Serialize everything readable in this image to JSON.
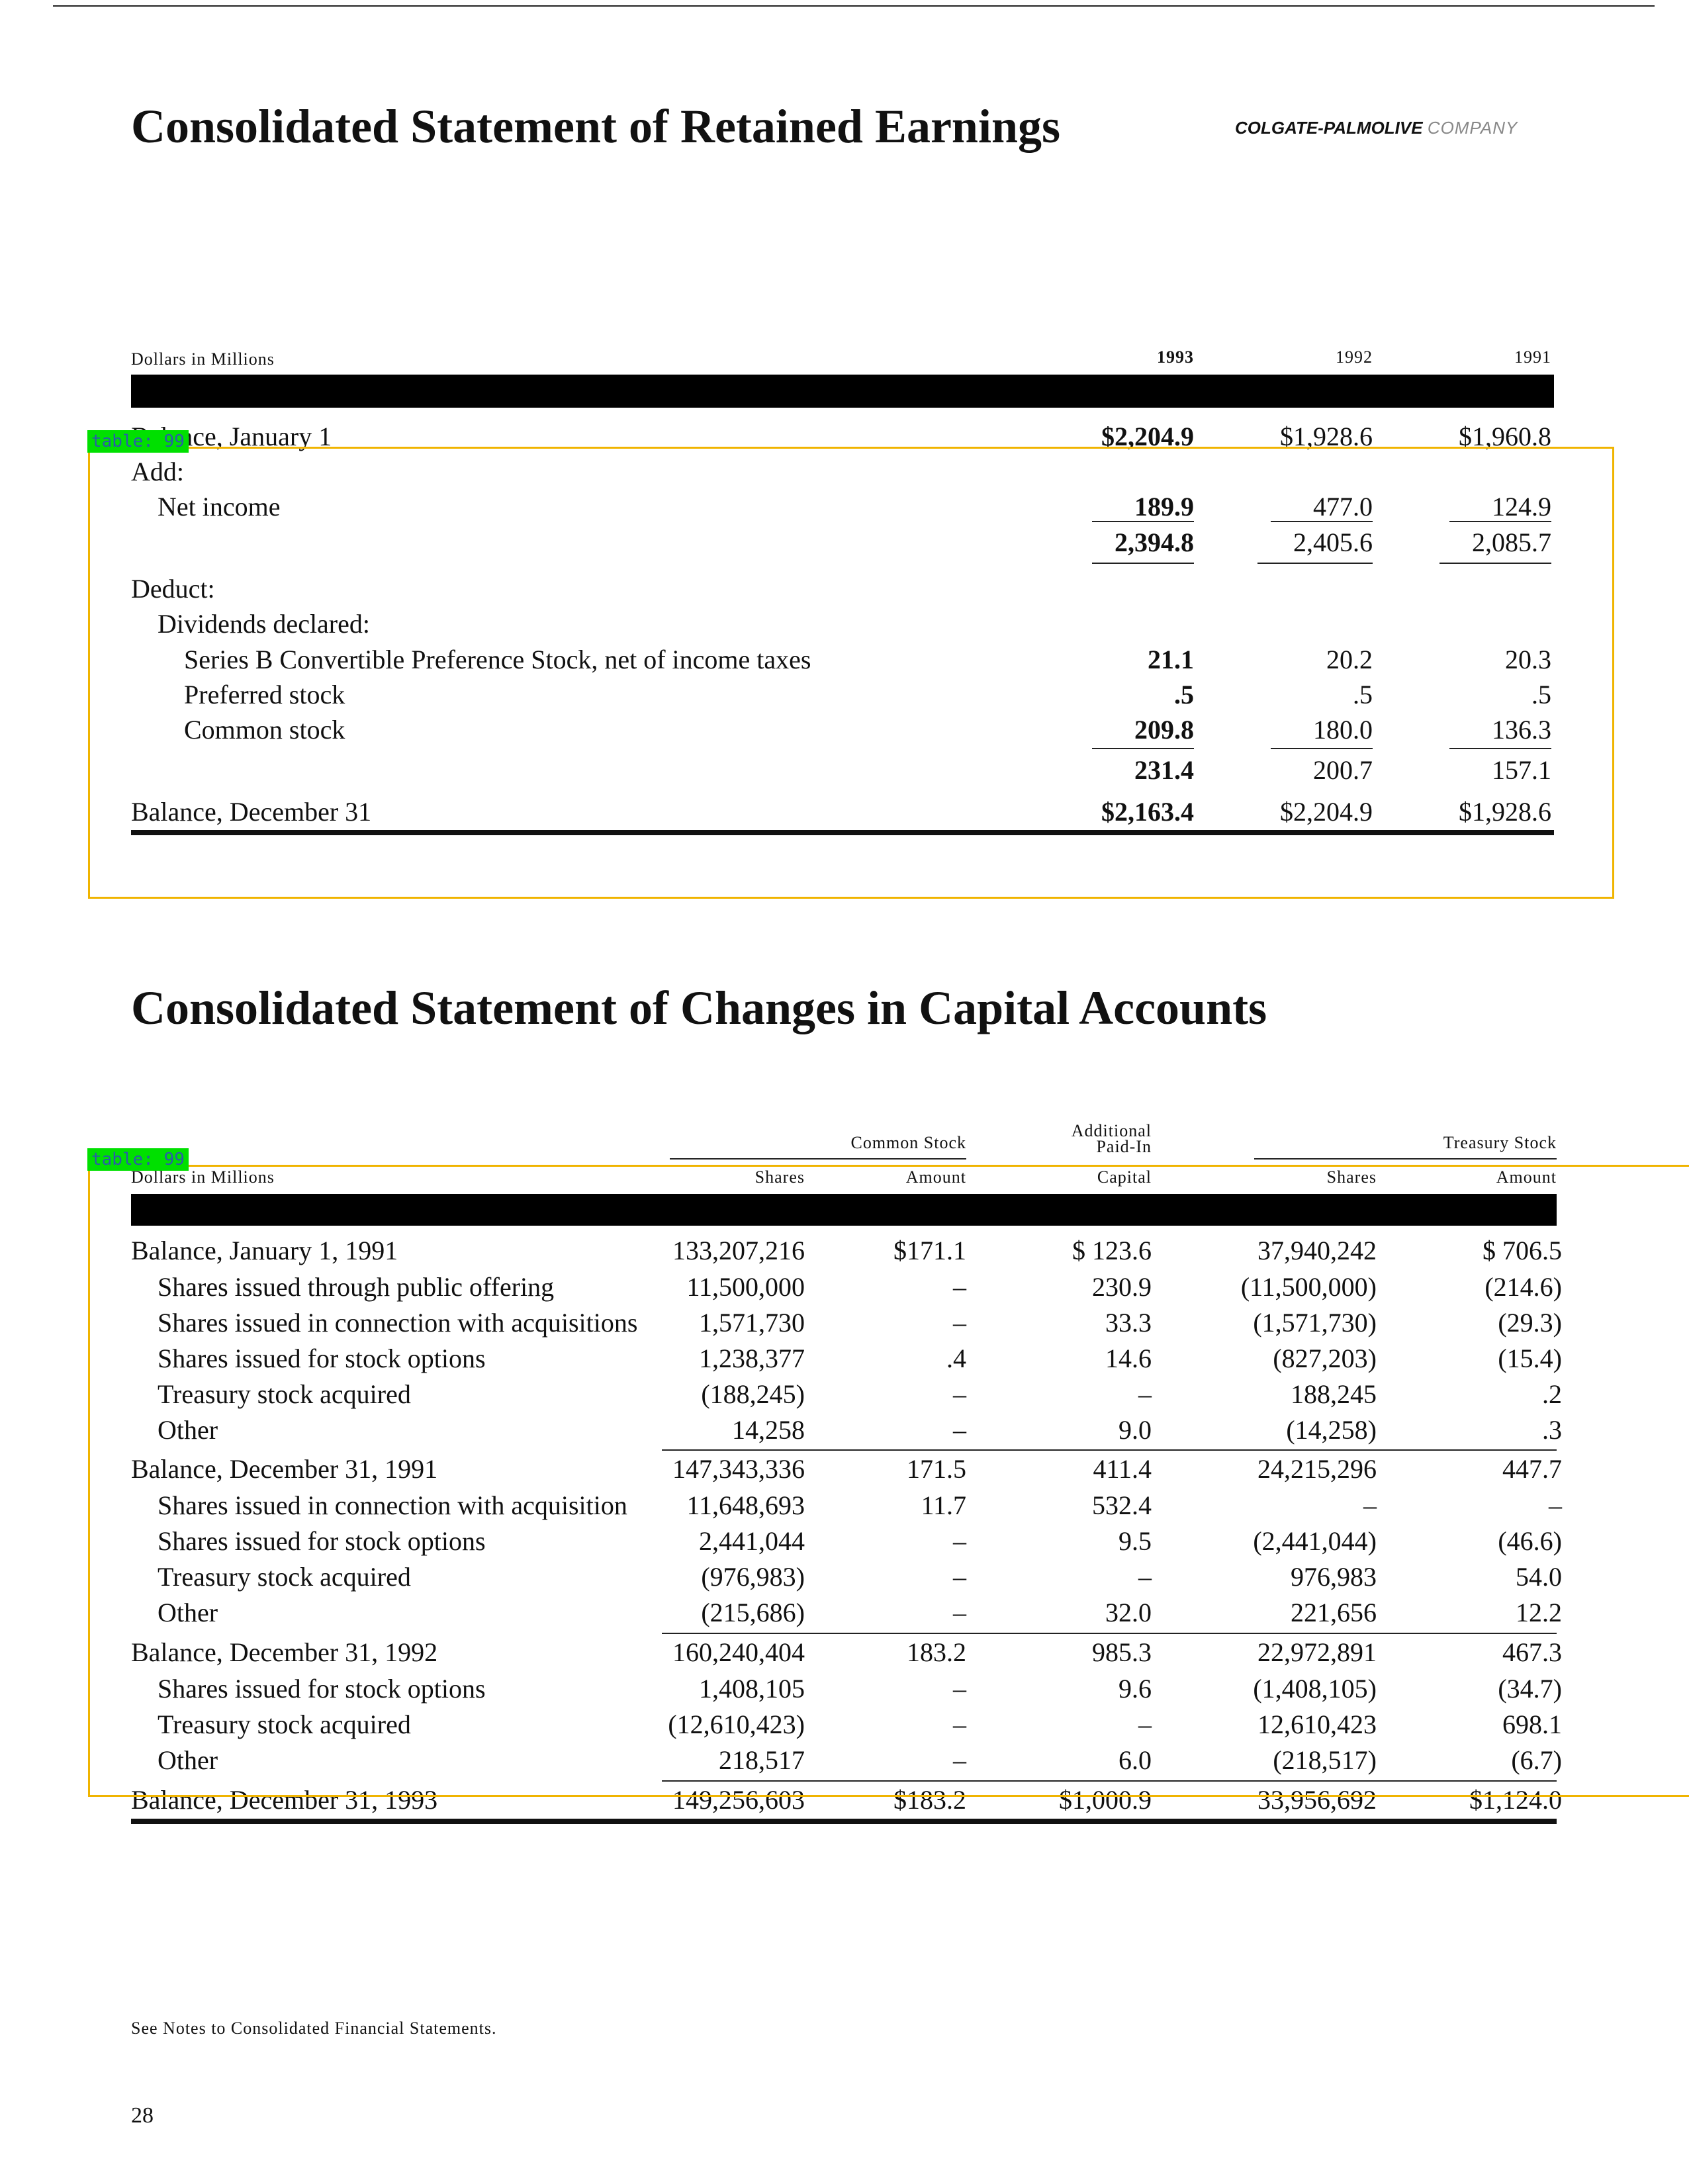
{
  "retained": {
    "title": "Consolidated Statement of Retained Earnings",
    "brand_bold": "COLGATE-PALMOLIVE",
    "brand_light": "COMPANY",
    "units": "Dollars in Millions",
    "years": [
      "1993",
      "1992",
      "1991"
    ],
    "rows": [
      {
        "label": "Balance, January 1",
        "v": [
          "$2,204.9",
          "$1,928.6",
          "$1,960.8"
        ]
      },
      {
        "label": "Add:",
        "v": [
          "",
          "",
          ""
        ]
      },
      {
        "label": "Net income",
        "v": [
          "189.9",
          "477.0",
          "124.9"
        ]
      },
      {
        "label": "",
        "v": [
          "2,394.8",
          "2,405.6",
          "2,085.7"
        ]
      },
      {
        "label": "Deduct:",
        "v": [
          "",
          "",
          ""
        ]
      },
      {
        "label": "Dividends declared:",
        "v": [
          "",
          "",
          ""
        ]
      },
      {
        "label": "Series B Convertible Preference Stock, net of income taxes",
        "v": [
          "21.1",
          "20.2",
          "20.3"
        ]
      },
      {
        "label": "Preferred stock",
        "v": [
          ".5",
          ".5",
          ".5"
        ]
      },
      {
        "label": "Common stock",
        "v": [
          "209.8",
          "180.0",
          "136.3"
        ]
      },
      {
        "label": "",
        "v": [
          "231.4",
          "200.7",
          "157.1"
        ]
      },
      {
        "label": "Balance, December 31",
        "v": [
          "$2,163.4",
          "$2,204.9",
          "$1,928.6"
        ]
      }
    ]
  },
  "capital": {
    "title": "Consolidated Statement of Changes in Capital Accounts",
    "units": "Dollars in Millions",
    "group_common": "Common Stock",
    "group_apic": [
      "Additional",
      "Paid-In",
      "Capital"
    ],
    "group_treasury": "Treasury Stock",
    "sub_headers": [
      "Shares",
      "Amount",
      "Shares",
      "Amount"
    ],
    "rows": [
      {
        "label": "Balance, January 1, 1991",
        "v": [
          "133,207,216",
          "$171.1",
          "$  123.6",
          "37,940,242",
          "$  706.5"
        ]
      },
      {
        "label": "Shares issued through public offering",
        "v": [
          "11,500,000",
          "–",
          "230.9",
          "(11,500,000)",
          "(214.6)"
        ]
      },
      {
        "label": "Shares issued in connection with acquisitions",
        "v": [
          "1,571,730",
          "–",
          "33.3",
          "(1,571,730)",
          "(29.3)"
        ]
      },
      {
        "label": "Shares issued for stock options",
        "v": [
          "1,238,377",
          ".4",
          "14.6",
          "(827,203)",
          "(15.4)"
        ]
      },
      {
        "label": "Treasury stock acquired",
        "v": [
          "(188,245)",
          "–",
          "–",
          "188,245",
          ".2"
        ]
      },
      {
        "label": "Other",
        "v": [
          "14,258",
          "–",
          "9.0",
          "(14,258)",
          ".3"
        ]
      },
      {
        "label": "Balance, December 31, 1991",
        "v": [
          "147,343,336",
          "171.5",
          "411.4",
          "24,215,296",
          "447.7"
        ]
      },
      {
        "label": "Shares issued in connection with acquisition",
        "v": [
          "11,648,693",
          "11.7",
          "532.4",
          "–",
          "–"
        ]
      },
      {
        "label": "Shares issued for stock options",
        "v": [
          "2,441,044",
          "–",
          "9.5",
          "(2,441,044)",
          "(46.6)"
        ]
      },
      {
        "label": "Treasury stock acquired",
        "v": [
          "(976,983)",
          "–",
          "–",
          "976,983",
          "54.0"
        ]
      },
      {
        "label": "Other",
        "v": [
          "(215,686)",
          "–",
          "32.0",
          "221,656",
          "12.2"
        ]
      },
      {
        "label": "Balance, December 31, 1992",
        "v": [
          "160,240,404",
          "183.2",
          "985.3",
          "22,972,891",
          "467.3"
        ]
      },
      {
        "label": "Shares issued for stock options",
        "v": [
          "1,408,105",
          "–",
          "9.6",
          "(1,408,105)",
          "(34.7)"
        ]
      },
      {
        "label": "Treasury stock acquired",
        "v": [
          "(12,610,423)",
          "–",
          "–",
          "12,610,423",
          "698.1"
        ]
      },
      {
        "label": "Other",
        "v": [
          "218,517",
          "–",
          "6.0",
          "(218,517)",
          "(6.7)"
        ]
      },
      {
        "label": "Balance, December 31, 1993",
        "v": [
          "149,256,603",
          "$183.2",
          "$1,000.9",
          "33,956,692",
          "$1,124.0"
        ]
      }
    ]
  },
  "footnote": "See Notes to Consolidated Financial Statements.",
  "page_number": "28",
  "overlay_tags": [
    "table: 99",
    "table: 99"
  ],
  "colors": {
    "overlay_border": "#f0b400",
    "tag_bg": "#00e000",
    "tag_text": "#2a5caa"
  }
}
